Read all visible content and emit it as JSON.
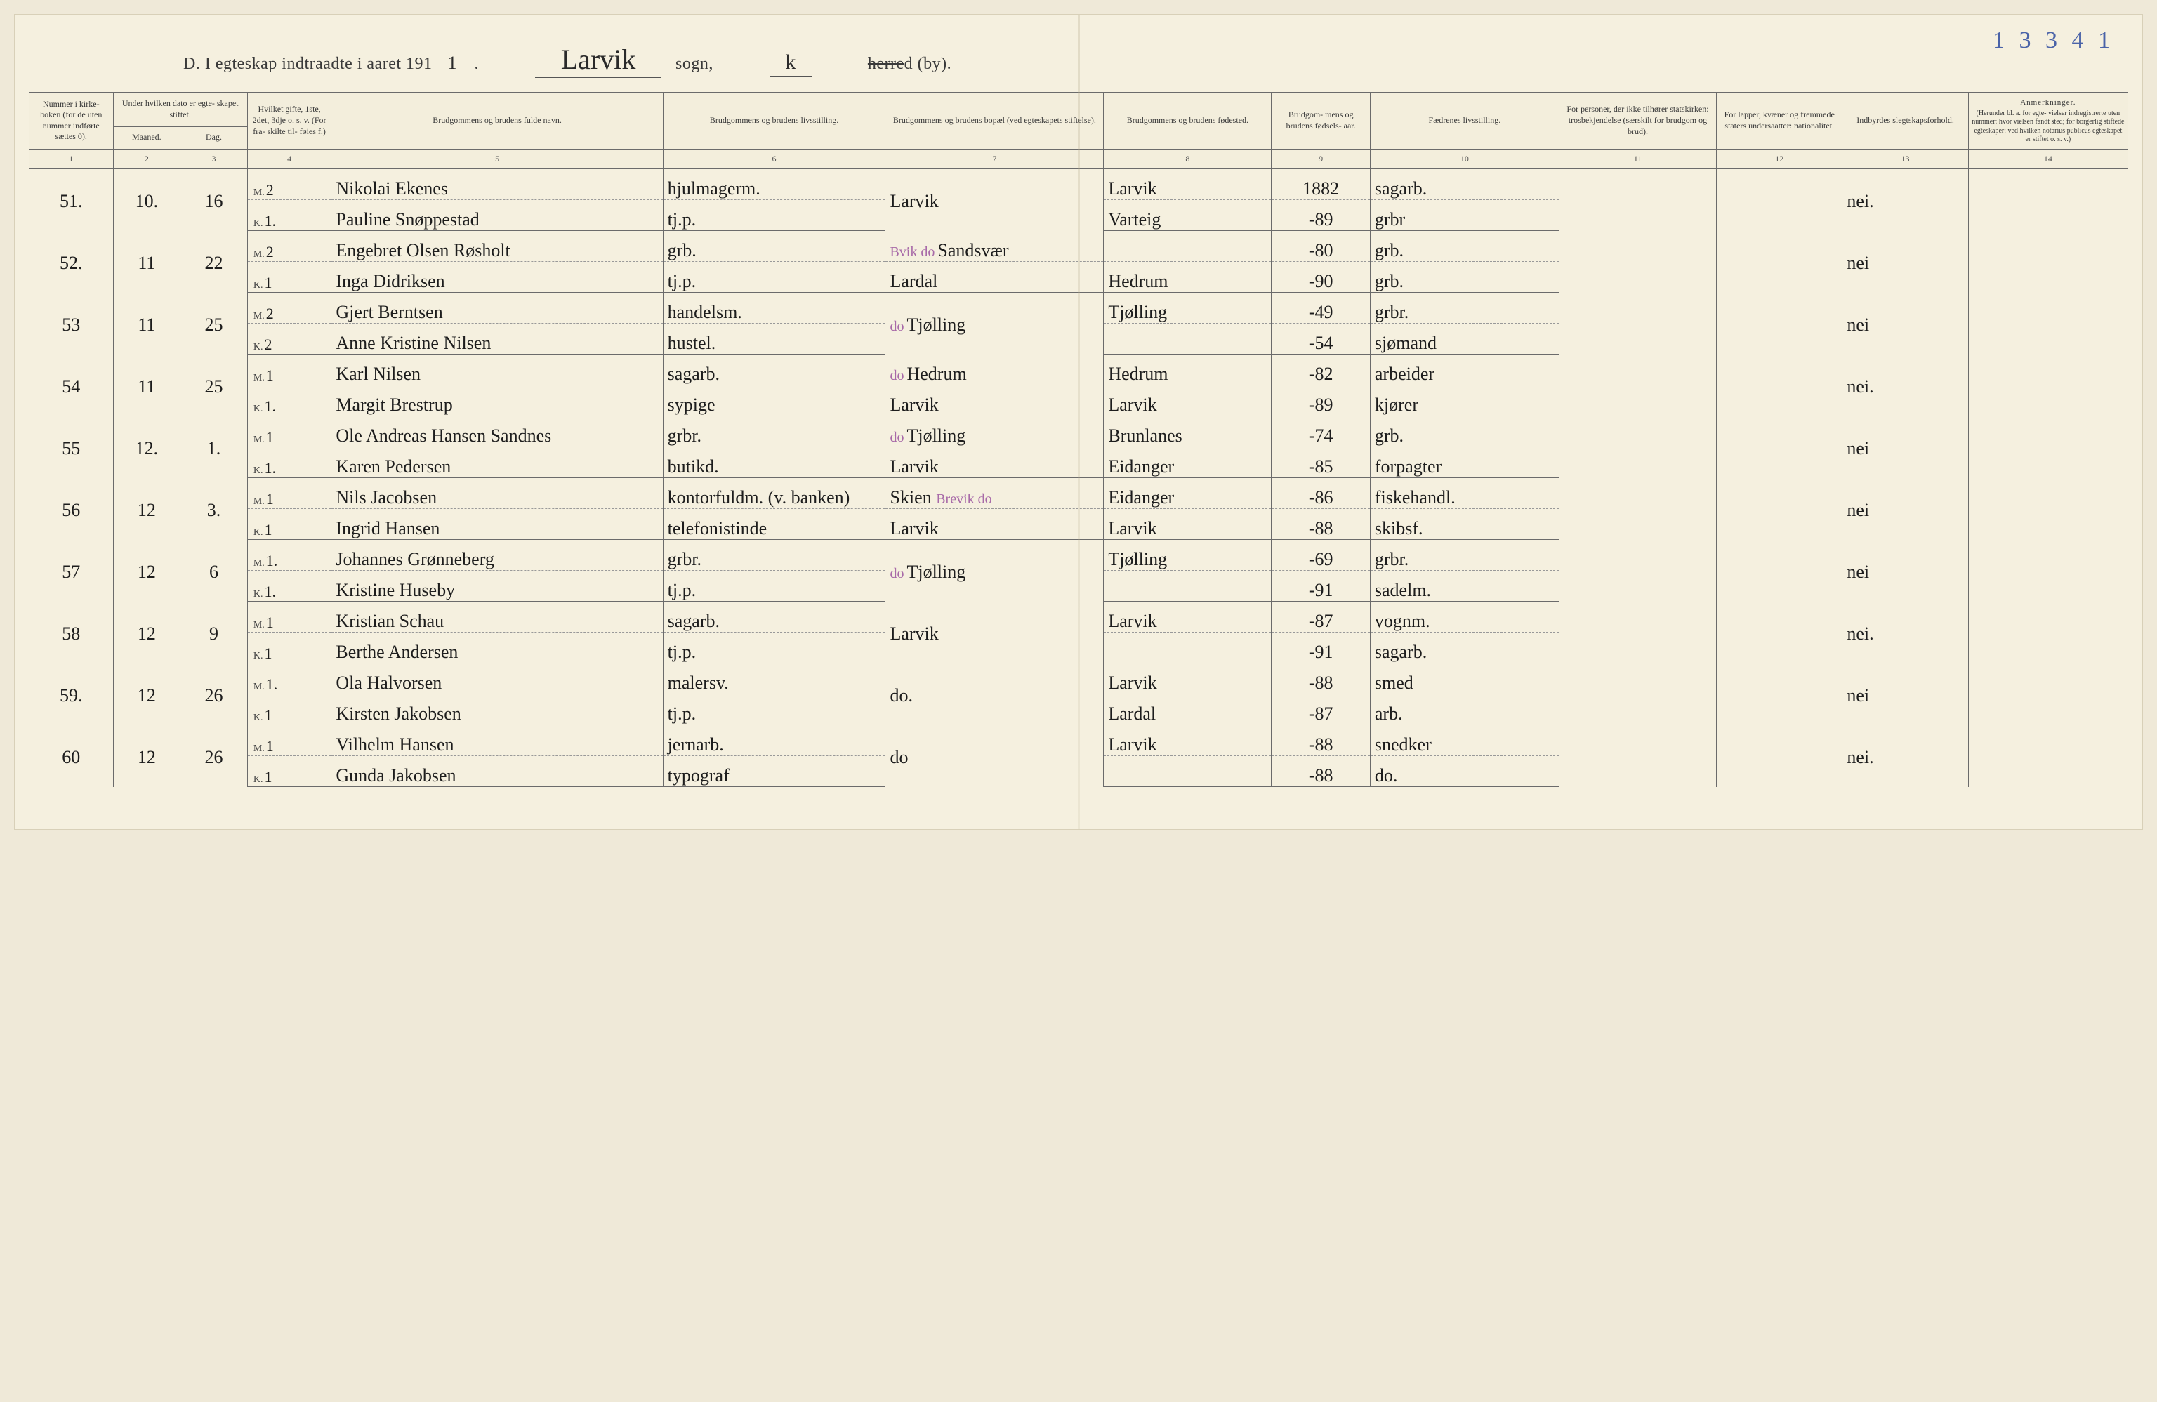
{
  "page_number_hand": "1 3 3 4 1",
  "heading": {
    "prefix": "D.  I egteskap indtraadte i aaret 191",
    "year_suffix": "1",
    "period": ".",
    "parish_hand": "Larvik",
    "sogn_label": "sogn,",
    "district_hand": "k",
    "herred_struck": "herre",
    "herred_tail": "d (by)."
  },
  "columns": {
    "c1": "Nummer i kirke- boken (for de uten nummer indførte sættes 0).",
    "c2a": "Under hvilken dato er egte- skapet stiftet.",
    "c2_m": "Maaned.",
    "c2_d": "Dag.",
    "c3": "Hvilket gifte, 1ste, 2det, 3dje o. s. v. (For fra- skilte til- føies f.)",
    "c4": "Brudgommens og brudens fulde navn.",
    "c5": "Brudgommens og brudens livsstilling.",
    "c6": "Brudgommens og brudens bopæl (ved egteskapets stiftelse).",
    "c7": "Brudgommens og brudens fødested.",
    "c8": "Brudgom- mens og brudens fødsels- aar.",
    "c9": "Fædrenes livsstilling.",
    "c10": "For personer, der ikke tilhører statskirken: trosbekjendelse (særskilt for brudgom og brud).",
    "c11": "For lapper, kvæner og fremmede staters undersaatter: nationalitet.",
    "c12": "Indbyrdes slegtskapsforhold.",
    "c13_title": "Anmerkninger.",
    "c13_sub": "(Herunder bl. a. for egte- vielser indregistrerte uten nummer: hvor vielsen fandt sted; for borgerlig stiftede egteskaper: ved hvilken notarius publicus egteskapet er stiftet o. s. v.)"
  },
  "colnums": [
    "1",
    "2",
    "3",
    "4",
    "5",
    "6",
    "7",
    "8",
    "9",
    "10",
    "11",
    "12",
    "13",
    "14"
  ],
  "mk_labels": {
    "m": "M.",
    "k": "K."
  },
  "entries": [
    {
      "no": "51.",
      "month": "10.",
      "day": "16",
      "m_gifte": "2",
      "k_gifte": "1.",
      "m_name": "Nikolai Ekenes",
      "k_name": "Pauline Snøppestad",
      "m_occ": "hjulmagerm.",
      "k_occ": "tj.p.",
      "residence": "Larvik",
      "m_birthpl": "Larvik",
      "k_birthpl": "Varteig",
      "m_year": "1882",
      "k_year": "-89",
      "m_father": "sagarb.",
      "k_father": "grbr",
      "kin": "nei."
    },
    {
      "no": "52.",
      "month": "11",
      "day": "22",
      "m_gifte": "2",
      "k_gifte": "1",
      "m_name": "Engebret Olsen Røsholt",
      "k_name": "Inga Didriksen",
      "m_occ": "grb.",
      "k_occ": "tj.p.",
      "residence_pre": "Bvik do",
      "residence": "Sandsvær",
      "k_residence": "Lardal",
      "m_birthpl": "",
      "k_birthpl": "Hedrum",
      "m_year": "-80",
      "k_year": "-90",
      "m_father": "grb.",
      "k_father": "grb.",
      "kin": "nei"
    },
    {
      "no": "53",
      "month": "11",
      "day": "25",
      "m_gifte": "2",
      "k_gifte": "2",
      "m_name": "Gjert Berntsen",
      "k_name": "Anne Kristine Nilsen",
      "m_occ": "handelsm.",
      "k_occ": "hustel.",
      "residence_pre": "do",
      "residence": "Tjølling",
      "m_birthpl": "Tjølling",
      "k_birthpl": "",
      "m_year": "-49",
      "k_year": "-54",
      "m_father": "grbr.",
      "k_father": "sjømand",
      "kin": "nei"
    },
    {
      "no": "54",
      "month": "11",
      "day": "25",
      "m_gifte": "1",
      "k_gifte": "1.",
      "m_name": "Karl Nilsen",
      "k_name": "Margit Brestrup",
      "m_occ": "sagarb.",
      "k_occ": "sypige",
      "residence_pre": "do",
      "residence": "Hedrum",
      "k_residence": "Larvik",
      "m_birthpl": "Hedrum",
      "k_birthpl": "Larvik",
      "m_year": "-82",
      "k_year": "-89",
      "m_father": "arbeider",
      "k_father": "kjører",
      "kin": "nei."
    },
    {
      "no": "55",
      "month": "12.",
      "day": "1.",
      "m_gifte": "1",
      "k_gifte": "1.",
      "m_name": "Ole Andreas Hansen Sandnes",
      "k_name": "Karen Pedersen",
      "m_occ": "grbr.",
      "k_occ": "butikd.",
      "residence_pre": "do",
      "residence": "Tjølling",
      "k_residence": "Larvik",
      "m_birthpl": "Brunlanes",
      "k_birthpl": "Eidanger",
      "m_year": "-74",
      "k_year": "-85",
      "m_father": "grb.",
      "k_father": "forpagter",
      "kin": "nei"
    },
    {
      "no": "56",
      "month": "12",
      "day": "3.",
      "m_gifte": "1",
      "k_gifte": "1",
      "m_name": "Nils Jacobsen",
      "k_name": "Ingrid Hansen",
      "m_occ": "kontorfuldm. (v. banken)",
      "k_occ": "telefonistinde",
      "residence": "Skien",
      "residence_post": "Brevik do",
      "k_residence": "Larvik",
      "m_birthpl": "Eidanger",
      "k_birthpl": "Larvik",
      "m_year": "-86",
      "k_year": "-88",
      "m_father": "fiskehandl.",
      "k_father": "skibsf.",
      "kin": "nei"
    },
    {
      "no": "57",
      "month": "12",
      "day": "6",
      "m_gifte": "1.",
      "k_gifte": "1.",
      "m_name": "Johannes Grønneberg",
      "k_name": "Kristine Huseby",
      "m_occ": "grbr.",
      "k_occ": "tj.p.",
      "residence_pre": "do",
      "residence": "Tjølling",
      "m_birthpl": "Tjølling",
      "k_birthpl": "",
      "m_year": "-69",
      "k_year": "-91",
      "m_father": "grbr.",
      "k_father": "sadelm.",
      "kin": "nei"
    },
    {
      "no": "58",
      "month": "12",
      "day": "9",
      "m_gifte": "1",
      "k_gifte": "1",
      "m_name": "Kristian Schau",
      "k_name": "Berthe Andersen",
      "m_occ": "sagarb.",
      "k_occ": "tj.p.",
      "residence": "Larvik",
      "m_birthpl": "Larvik",
      "k_birthpl": "",
      "m_year": "-87",
      "k_year": "-91",
      "m_father": "vognm.",
      "k_father": "sagarb.",
      "kin": "nei."
    },
    {
      "no": "59.",
      "month": "12",
      "day": "26",
      "m_gifte": "1.",
      "k_gifte": "1",
      "m_name": "Ola Halvorsen",
      "k_name": "Kirsten Jakobsen",
      "m_occ": "malersv.",
      "k_occ": "tj.p.",
      "residence": "do.",
      "m_birthpl": "Larvik",
      "k_birthpl": "Lardal",
      "m_year": "-88",
      "k_year": "-87",
      "m_father": "smed",
      "k_father": "arb.",
      "kin": "nei"
    },
    {
      "no": "60",
      "month": "12",
      "day": "26",
      "m_gifte": "1",
      "k_gifte": "1",
      "m_name": "Vilhelm Hansen",
      "k_name": "Gunda Jakobsen",
      "m_occ": "jernarb.",
      "k_occ": "typograf",
      "residence": "do",
      "m_birthpl": "Larvik",
      "k_birthpl": "",
      "m_year": "-88",
      "k_year": "-88",
      "m_father": "snedker",
      "k_father": "do.",
      "kin": "nei."
    }
  ]
}
